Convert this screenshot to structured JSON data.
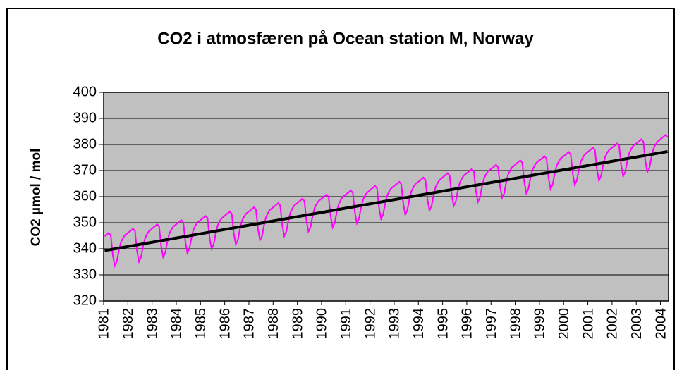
{
  "chart_data": {
    "type": "line",
    "title": "CO2 i atmosfæren på  Ocean station M, Norway",
    "y_label": "CO2  µmol / mol",
    "categories": [
      "1981",
      null,
      null,
      null,
      null,
      null,
      null,
      null,
      null,
      null,
      null,
      null,
      "1982",
      null,
      null,
      null,
      null,
      null,
      null,
      null,
      null,
      null,
      null,
      null,
      "1983",
      null,
      null,
      null,
      null,
      null,
      null,
      null,
      null,
      null,
      null,
      null,
      "1984",
      null,
      null,
      null,
      null,
      null,
      null,
      null,
      null,
      null,
      null,
      null,
      "1985",
      null,
      null,
      null,
      null,
      null,
      null,
      null,
      null,
      null,
      null,
      null,
      "1986",
      null,
      null,
      null,
      null,
      null,
      null,
      null,
      null,
      null,
      null,
      null,
      "1987",
      null,
      null,
      null,
      null,
      null,
      null,
      null,
      null,
      null,
      null,
      null,
      "1988",
      null,
      null,
      null,
      null,
      null,
      null,
      null,
      null,
      null,
      null,
      null,
      "1989",
      null,
      null,
      null,
      null,
      null,
      null,
      null,
      null,
      null,
      null,
      null,
      "1990",
      null,
      null,
      null,
      null,
      null,
      null,
      null,
      null,
      null,
      null,
      null,
      "1991",
      null,
      null,
      null,
      null,
      null,
      null,
      null,
      null,
      null,
      null,
      null,
      "1992",
      null,
      null,
      null,
      null,
      null,
      null,
      null,
      null,
      null,
      null,
      null,
      "1993",
      null,
      null,
      null,
      null,
      null,
      null,
      null,
      null,
      null,
      null,
      null,
      "1994",
      null,
      null,
      null,
      null,
      null,
      null,
      null,
      null,
      null,
      null,
      null,
      "1995",
      null,
      null,
      null,
      null,
      null,
      null,
      null,
      null,
      null,
      null,
      null,
      "1996",
      null,
      null,
      null,
      null,
      null,
      null,
      null,
      null,
      null,
      null,
      null,
      "1997",
      null,
      null,
      null,
      null,
      null,
      null,
      null,
      null,
      null,
      null,
      null,
      "1998",
      null,
      null,
      null,
      null,
      null,
      null,
      null,
      null,
      null,
      null,
      null,
      "1999",
      null,
      null,
      null,
      null,
      null,
      null,
      null,
      null,
      null,
      null,
      null,
      "2000",
      null,
      null,
      null,
      null,
      null,
      null,
      null,
      null,
      null,
      null,
      null,
      "2001",
      null,
      null,
      null,
      null,
      null,
      null,
      null,
      null,
      null,
      null,
      null,
      "2002",
      null,
      null,
      null,
      null,
      null,
      null,
      null,
      null,
      null,
      null,
      null,
      "2003",
      null,
      null,
      null,
      null,
      null,
      null,
      null,
      null,
      null,
      null,
      null,
      "2004",
      null,
      null,
      null
    ],
    "series": [
      {
        "color": "#ff00ff",
        "values": [
          344.8,
          345.4,
          346.1,
          345.2,
          337.8,
          333.5,
          335.1,
          339.2,
          342.4,
          344.0,
          345.2,
          345.8,
          346.4,
          347.0,
          347.7,
          346.8,
          339.4,
          335.1,
          336.7,
          340.8,
          344.0,
          345.6,
          346.8,
          347.4,
          348.1,
          348.7,
          349.4,
          348.5,
          341.1,
          336.8,
          338.4,
          342.5,
          345.7,
          347.3,
          348.5,
          349.1,
          349.7,
          350.3,
          351.0,
          350.1,
          342.7,
          338.4,
          340.0,
          344.1,
          347.3,
          348.9,
          350.1,
          350.7,
          351.3,
          351.9,
          352.6,
          351.7,
          344.3,
          340.0,
          341.6,
          345.7,
          348.9,
          350.5,
          351.7,
          352.3,
          353.0,
          353.6,
          354.3,
          353.4,
          346.0,
          341.7,
          343.3,
          347.4,
          350.6,
          352.2,
          353.4,
          354.0,
          354.6,
          355.2,
          355.9,
          355.0,
          347.6,
          343.3,
          344.9,
          349.0,
          352.2,
          353.8,
          355.0,
          355.6,
          356.2,
          356.8,
          357.5,
          356.6,
          349.2,
          344.9,
          346.5,
          350.6,
          353.8,
          355.4,
          356.6,
          357.2,
          357.9,
          358.5,
          359.2,
          358.3,
          350.9,
          346.6,
          348.2,
          352.3,
          355.5,
          357.1,
          358.3,
          358.9,
          359.5,
          360.1,
          360.8,
          359.9,
          352.5,
          348.2,
          349.8,
          353.9,
          357.1,
          358.7,
          359.9,
          360.5,
          361.1,
          361.7,
          362.4,
          361.5,
          354.1,
          349.8,
          351.4,
          355.5,
          358.7,
          360.3,
          361.5,
          362.1,
          362.8,
          363.4,
          364.1,
          363.2,
          355.8,
          351.5,
          353.1,
          357.2,
          360.4,
          362.0,
          363.2,
          363.8,
          364.4,
          365.0,
          365.7,
          364.8,
          357.4,
          353.1,
          354.7,
          358.8,
          362.0,
          363.6,
          364.8,
          365.4,
          366.0,
          366.6,
          367.3,
          366.4,
          359.0,
          354.7,
          356.3,
          360.4,
          363.6,
          365.2,
          366.4,
          367.0,
          367.7,
          368.3,
          369.0,
          368.1,
          360.7,
          356.4,
          358.0,
          362.1,
          365.3,
          366.9,
          368.1,
          368.7,
          369.3,
          369.9,
          370.6,
          369.7,
          362.3,
          358.0,
          359.6,
          363.7,
          366.9,
          368.5,
          369.7,
          370.3,
          370.9,
          371.5,
          372.2,
          371.3,
          363.9,
          359.6,
          361.2,
          365.3,
          368.5,
          370.1,
          371.3,
          371.9,
          372.6,
          373.2,
          373.9,
          373.0,
          365.6,
          361.3,
          362.9,
          367.0,
          370.2,
          371.8,
          373.0,
          373.6,
          374.2,
          374.8,
          375.5,
          374.6,
          367.2,
          362.9,
          364.5,
          368.6,
          371.8,
          373.4,
          374.6,
          375.2,
          375.8,
          376.4,
          377.1,
          376.2,
          368.8,
          364.5,
          366.1,
          370.2,
          373.4,
          375.0,
          376.2,
          376.8,
          377.5,
          378.1,
          378.8,
          377.9,
          370.5,
          366.2,
          367.8,
          371.9,
          375.1,
          376.7,
          377.9,
          378.5,
          379.1,
          379.7,
          380.4,
          379.5,
          372.1,
          367.8,
          369.4,
          373.5,
          376.7,
          378.3,
          379.5,
          380.1,
          380.7,
          381.3,
          382.0,
          381.1,
          373.7,
          369.4,
          371.0,
          375.1,
          378.3,
          379.9,
          381.1,
          381.7,
          382.4,
          383.0,
          383.7,
          382.8
        ]
      }
    ],
    "trendline": {
      "color": "#000000",
      "start": 339.3,
      "end": 377.3
    },
    "ylim": [
      320,
      400
    ],
    "yticks": [
      320,
      330,
      340,
      350,
      360,
      370,
      380,
      390,
      400
    ],
    "grid": true,
    "plot_background": "#c0c0c0"
  }
}
